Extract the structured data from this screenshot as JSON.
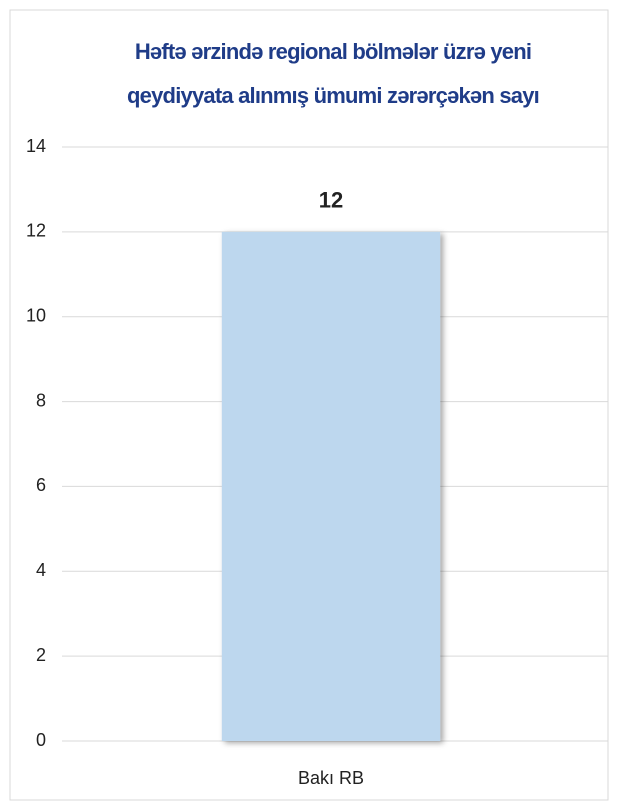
{
  "chart_data": {
    "type": "bar",
    "title": [
      "Həftə ərzində regional bölmələr üzrə yeni",
      "qeydiyyata  alınmış  ümumi  zərərçəkən sayı"
    ],
    "categories": [
      "Bakı RB"
    ],
    "values": [
      12
    ],
    "color": "#bdd7ee",
    "ylim": [
      0,
      14
    ],
    "yticks": [
      0,
      2,
      4,
      6,
      8,
      10,
      12,
      14
    ],
    "grid": true,
    "data_labels": true
  }
}
